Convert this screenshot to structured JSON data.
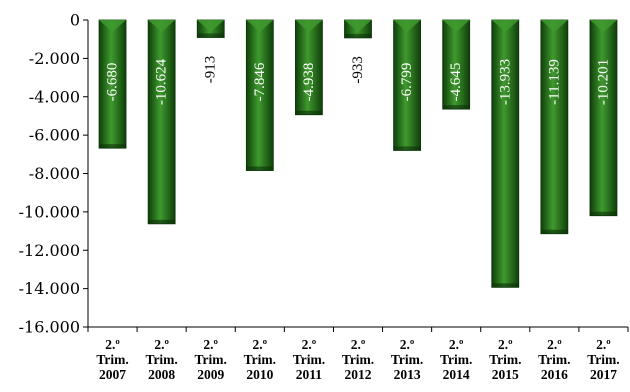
{
  "chart_data": {
    "type": "bar",
    "categories": [
      [
        "2.º",
        "Trim.",
        "2007"
      ],
      [
        "2.º",
        "Trim.",
        "2008"
      ],
      [
        "2.º",
        "Trim.",
        "2009"
      ],
      [
        "2.º",
        "Trim.",
        "2010"
      ],
      [
        "2.º",
        "Trim.",
        "2011"
      ],
      [
        "2.º",
        "Trim.",
        "2012"
      ],
      [
        "2.º",
        "Trim.",
        "2013"
      ],
      [
        "2.º",
        "Trim.",
        "2014"
      ],
      [
        "2.º",
        "Trim.",
        "2015"
      ],
      [
        "2.º",
        "Trim.",
        "2016"
      ],
      [
        "2.º",
        "Trim.",
        "2017"
      ]
    ],
    "values": [
      -6680,
      -10624,
      -913,
      -7846,
      -4938,
      -933,
      -6799,
      -4645,
      -13933,
      -11139,
      -10201
    ],
    "data_labels": [
      "-6.680",
      "-10.624",
      "-913",
      "-7.846",
      "-4.938",
      "-933",
      "-6.799",
      "-4.645",
      "-13.933",
      "-11.139",
      "-10.201"
    ],
    "yticks": [
      0,
      -2000,
      -4000,
      -6000,
      -8000,
      -10000,
      -12000,
      -14000,
      -16000
    ],
    "ytick_labels": [
      "0",
      "-2.000",
      "-4.000",
      "-6.000",
      "-8.000",
      "-10.000",
      "-12.000",
      "-14.000",
      "-16.000"
    ],
    "ylim": [
      -16000,
      0
    ],
    "title": "",
    "xlabel": "",
    "ylabel": "",
    "legend": "none",
    "grid": false,
    "bar_color": "#1f6e16",
    "bar_color_dark": "#0f3f0a",
    "bar_color_light": "#3f9a2e"
  }
}
